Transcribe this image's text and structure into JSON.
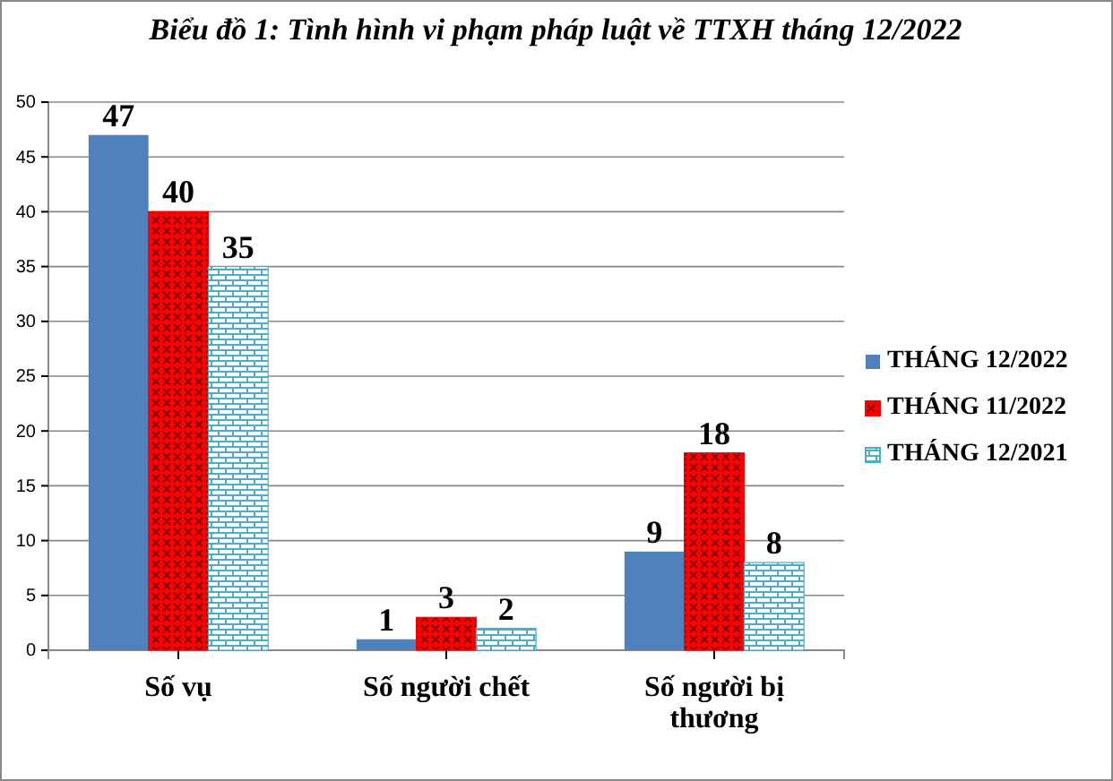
{
  "chart_data": {
    "type": "bar",
    "title": "Biểu đồ 1: Tình hình vi phạm pháp luật về TTXH tháng 12/2022",
    "categories": [
      "Số vụ",
      "Số người chết",
      "Số người bị thương"
    ],
    "series": [
      {
        "name": "THÁNG 12/2022",
        "color": "#4f81bd",
        "values": [
          47,
          1,
          9
        ]
      },
      {
        "name": "THÁNG 11/2022",
        "color": "#ff0000",
        "values": [
          40,
          3,
          18
        ]
      },
      {
        "name": "THÁNG 12/2021",
        "color": "#4bacc6",
        "values": [
          35,
          2,
          8
        ]
      }
    ],
    "ylim": [
      0,
      50
    ],
    "yticks": [
      0,
      5,
      10,
      15,
      20,
      25,
      30,
      35,
      40,
      45,
      50
    ],
    "grid": "y",
    "legend": "right",
    "data_labels": true
  }
}
